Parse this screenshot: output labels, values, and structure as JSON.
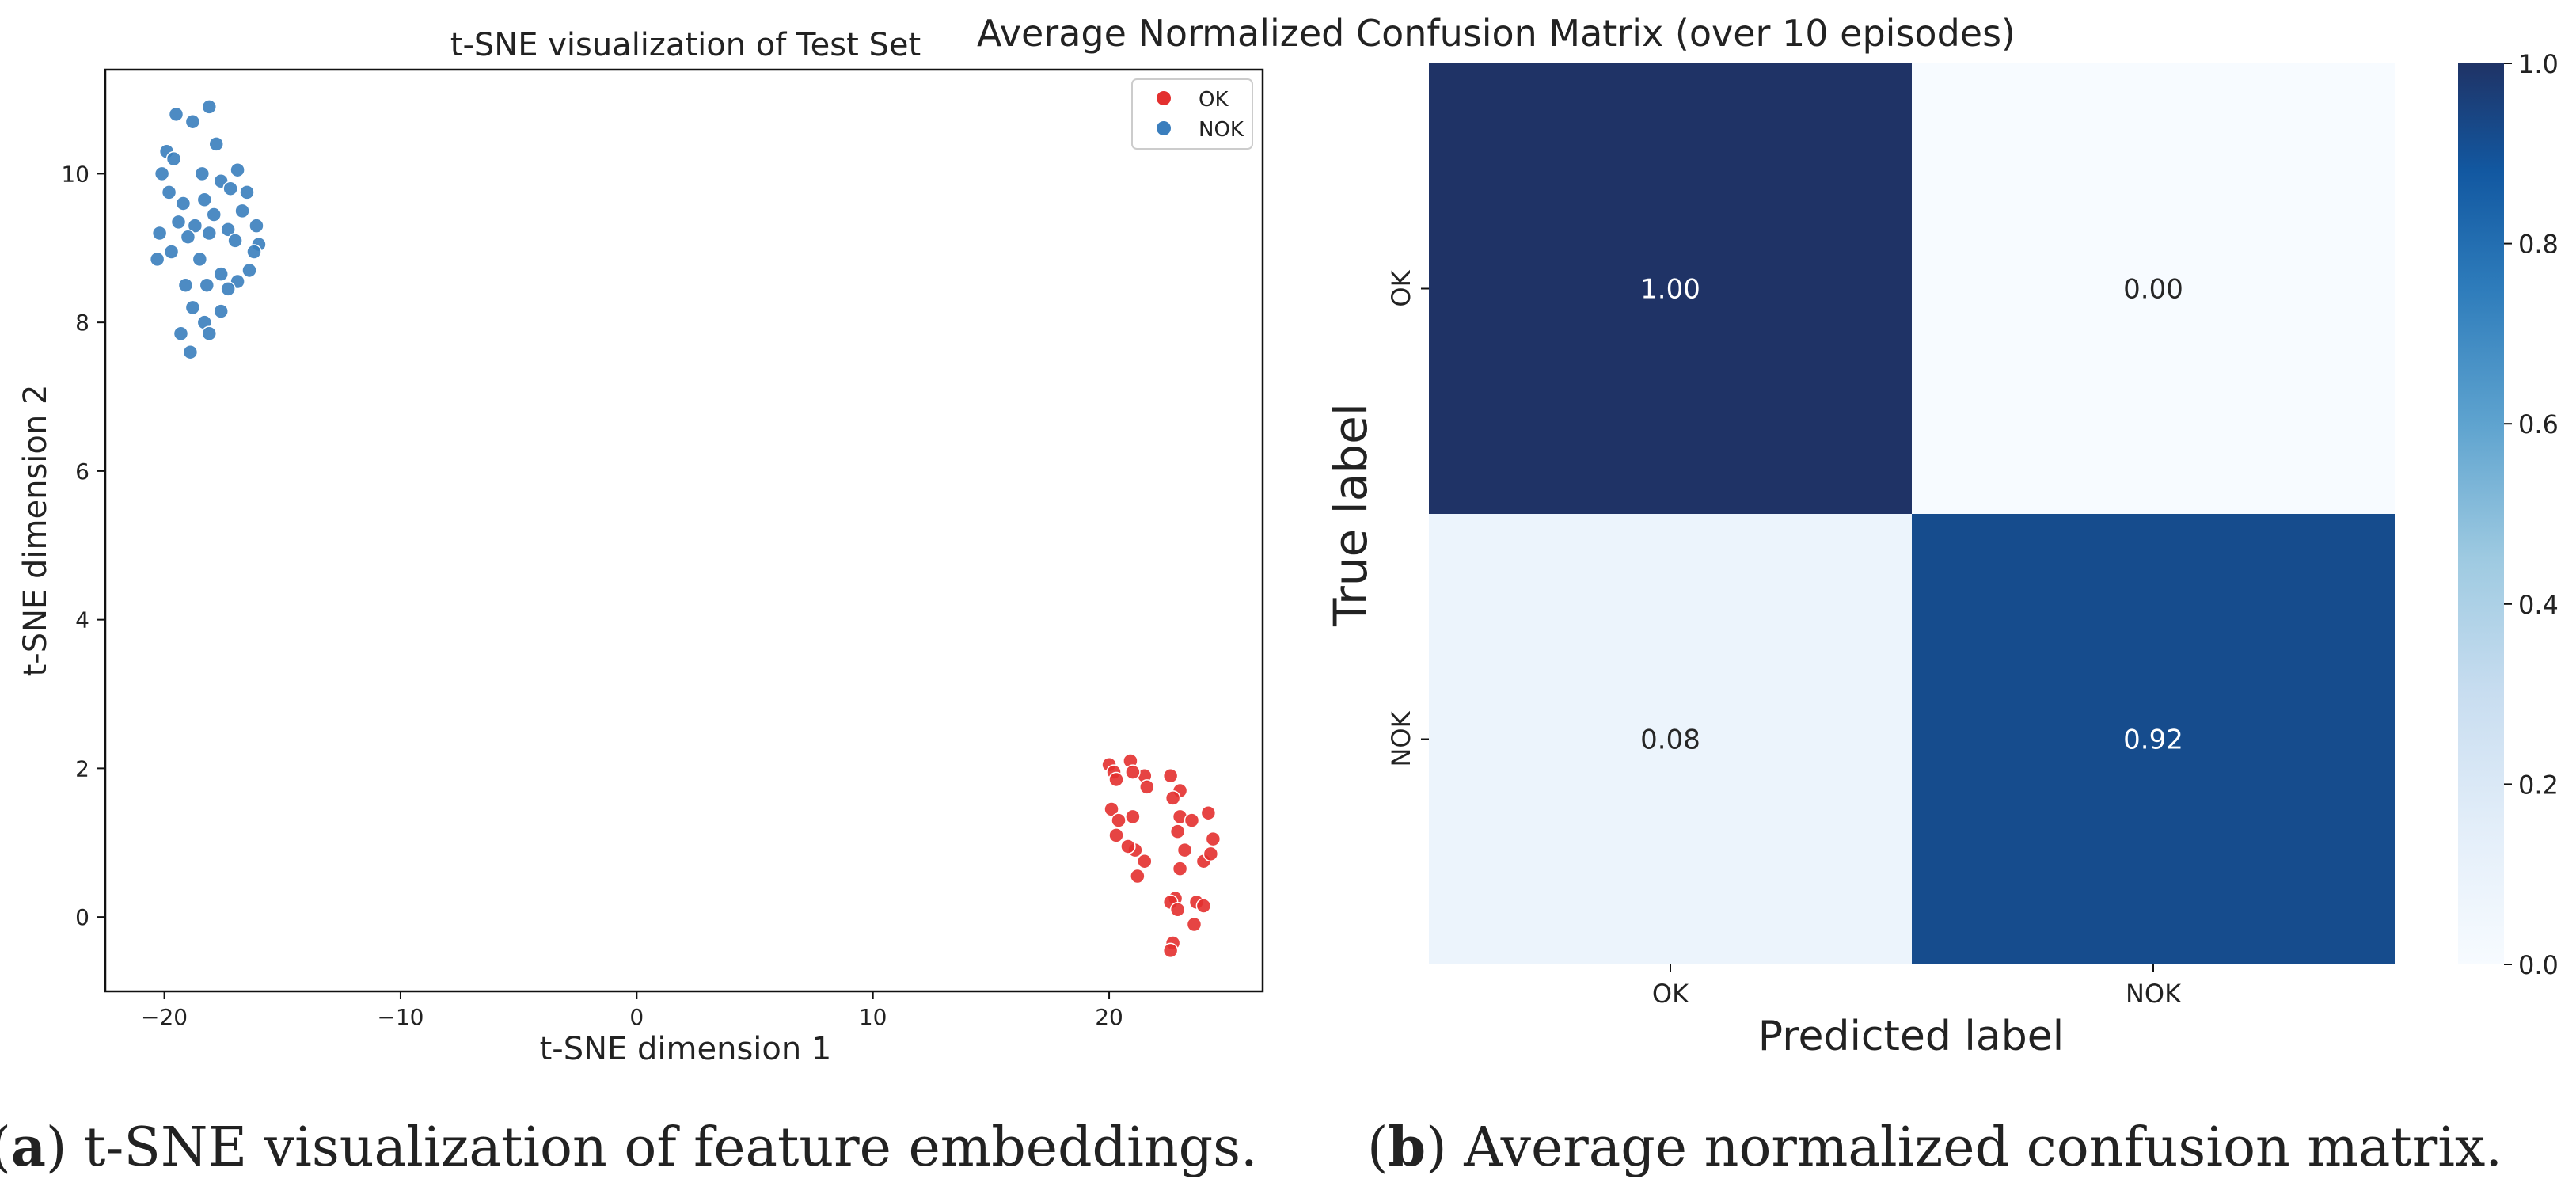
{
  "colors": {
    "ok": "#e3302f",
    "nok": "#3a7ebd",
    "cm_low": "#f7fbff",
    "cm_high": "#1f3366"
  },
  "chart_data": [
    {
      "type": "scatter",
      "title": "t-SNE visualization of Test Set",
      "xlabel": "t-SNE dimension 1",
      "ylabel": "t-SNE dimension 2",
      "xlim": [
        -22.5,
        26.5
      ],
      "ylim": [
        -1.0,
        11.4
      ],
      "xticks": [
        -20,
        -10,
        0,
        10,
        20
      ],
      "xtick_labels": [
        "−20",
        "−10",
        "0",
        "10",
        "20"
      ],
      "yticks": [
        0,
        2,
        4,
        6,
        8,
        10
      ],
      "ytick_labels": [
        "0",
        "2",
        "4",
        "6",
        "8",
        "10"
      ],
      "legend": {
        "placement": "top-right",
        "entries": [
          "OK",
          "NOK"
        ]
      },
      "caption_letter": "a",
      "caption_text": ") t-SNE visualization of feature embeddings.",
      "series": [
        {
          "name": "NOK",
          "points": [
            [
              -19.5,
              10.8
            ],
            [
              -18.8,
              10.7
            ],
            [
              -18.1,
              10.9
            ],
            [
              -17.8,
              10.4
            ],
            [
              -19.9,
              10.3
            ],
            [
              -20.1,
              10.0
            ],
            [
              -19.6,
              10.2
            ],
            [
              -18.4,
              10.0
            ],
            [
              -17.6,
              9.9
            ],
            [
              -16.9,
              10.05
            ],
            [
              -17.2,
              9.8
            ],
            [
              -16.5,
              9.75
            ],
            [
              -19.2,
              9.6
            ],
            [
              -19.8,
              9.75
            ],
            [
              -18.3,
              9.65
            ],
            [
              -17.9,
              9.45
            ],
            [
              -16.7,
              9.5
            ],
            [
              -19.4,
              9.35
            ],
            [
              -18.7,
              9.3
            ],
            [
              -17.3,
              9.25
            ],
            [
              -16.1,
              9.3
            ],
            [
              -20.2,
              9.2
            ],
            [
              -19.0,
              9.15
            ],
            [
              -18.1,
              9.2
            ],
            [
              -17.0,
              9.1
            ],
            [
              -16.0,
              9.05
            ],
            [
              -19.7,
              8.95
            ],
            [
              -18.5,
              8.85
            ],
            [
              -16.4,
              8.7
            ],
            [
              -20.3,
              8.85
            ],
            [
              -17.6,
              8.65
            ],
            [
              -18.2,
              8.5
            ],
            [
              -19.1,
              8.5
            ],
            [
              -16.9,
              8.55
            ],
            [
              -17.3,
              8.45
            ],
            [
              -18.8,
              8.2
            ],
            [
              -17.6,
              8.15
            ],
            [
              -18.3,
              8.0
            ],
            [
              -19.3,
              7.85
            ],
            [
              -18.1,
              7.85
            ],
            [
              -18.9,
              7.6
            ],
            [
              -16.2,
              8.95
            ]
          ]
        },
        {
          "name": "OK",
          "points": [
            [
              20.0,
              2.05
            ],
            [
              20.2,
              1.95
            ],
            [
              20.9,
              2.1
            ],
            [
              21.5,
              1.9
            ],
            [
              22.6,
              1.9
            ],
            [
              20.3,
              1.85
            ],
            [
              21.0,
              1.95
            ],
            [
              21.6,
              1.75
            ],
            [
              23.0,
              1.7
            ],
            [
              20.1,
              1.45
            ],
            [
              22.7,
              1.6
            ],
            [
              24.2,
              1.4
            ],
            [
              20.4,
              1.3
            ],
            [
              21.0,
              1.35
            ],
            [
              23.0,
              1.35
            ],
            [
              23.5,
              1.3
            ],
            [
              22.9,
              1.15
            ],
            [
              24.4,
              1.05
            ],
            [
              20.3,
              1.1
            ],
            [
              21.1,
              0.9
            ],
            [
              23.2,
              0.9
            ],
            [
              21.5,
              0.75
            ],
            [
              23.0,
              0.65
            ],
            [
              24.0,
              0.75
            ],
            [
              24.3,
              0.85
            ],
            [
              21.2,
              0.55
            ],
            [
              22.8,
              0.25
            ],
            [
              22.6,
              0.2
            ],
            [
              23.7,
              0.2
            ],
            [
              24.0,
              0.15
            ],
            [
              22.9,
              0.1
            ],
            [
              23.6,
              -0.1
            ],
            [
              22.7,
              -0.35
            ],
            [
              22.6,
              -0.45
            ],
            [
              20.8,
              0.95
            ]
          ]
        }
      ]
    },
    {
      "type": "heatmap",
      "title": "Average Normalized Confusion Matrix (over 10 episodes)",
      "xlabel": "Predicted label",
      "ylabel": "True label",
      "row_labels": [
        "OK",
        "NOK"
      ],
      "col_labels": [
        "OK",
        "NOK"
      ],
      "values": [
        [
          1.0,
          0.0
        ],
        [
          0.08,
          0.92
        ]
      ],
      "cell_labels": [
        [
          "1.00",
          "0.00"
        ],
        [
          "0.08",
          "0.92"
        ]
      ],
      "colorbar": {
        "range": [
          0.0,
          1.0
        ],
        "ticks": [
          0.0,
          0.2,
          0.4,
          0.6,
          0.8,
          1.0
        ],
        "tick_labels": [
          "0.0",
          "0.2",
          "0.4",
          "0.6",
          "0.8",
          "1.0"
        ]
      },
      "caption_letter": "b",
      "caption_text": ") Average normalized confusion matrix."
    }
  ]
}
